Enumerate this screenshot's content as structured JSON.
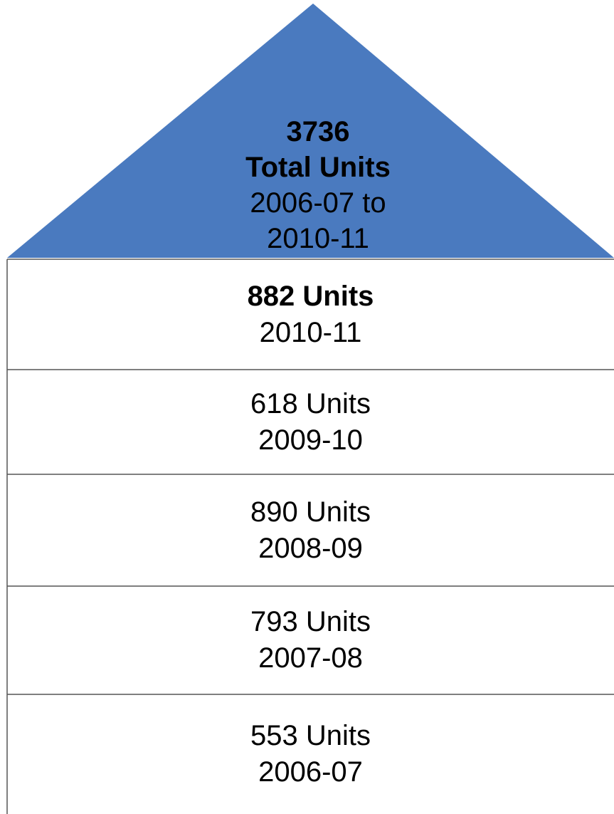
{
  "roof": {
    "total": "3736",
    "label": "Total Units",
    "period": "2006-07 to 2010-11"
  },
  "floors": [
    {
      "units": "882 Units",
      "year": "2010-11"
    },
    {
      "units": "618 Units",
      "year": "2009-10"
    },
    {
      "units": "890 Units",
      "year": "2008-09"
    },
    {
      "units": "793 Units",
      "year": "2007-08"
    },
    {
      "units": "553 Units",
      "year": "2006-07"
    }
  ]
}
